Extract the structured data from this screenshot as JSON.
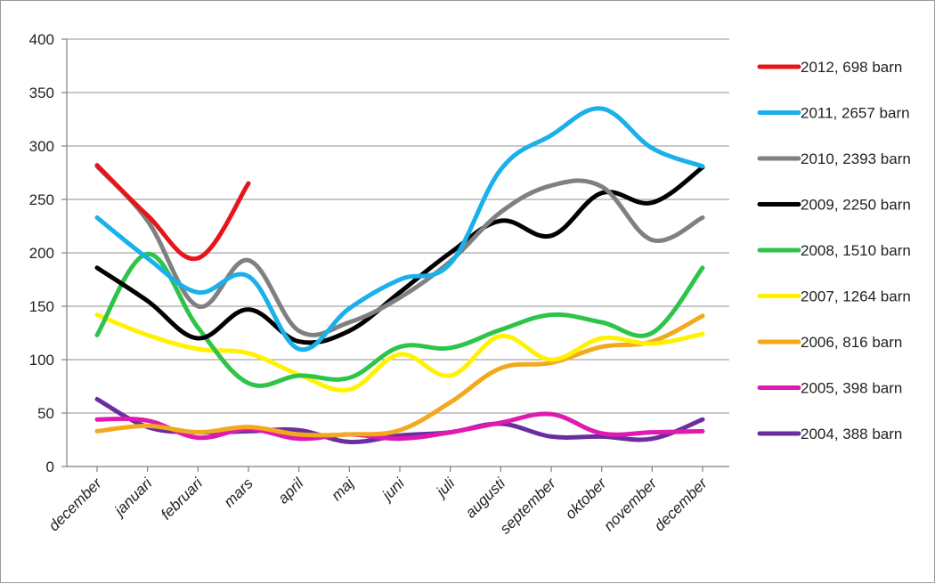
{
  "chart_data": {
    "type": "line",
    "title": "",
    "xlabel": "",
    "ylabel": "",
    "ylim": [
      0,
      400
    ],
    "yticks": [
      0,
      50,
      100,
      150,
      200,
      250,
      300,
      350,
      400
    ],
    "grid": true,
    "legend_position": "right",
    "categories": [
      "december",
      "januari",
      "februari",
      "mars",
      "april",
      "maj",
      "juni",
      "juli",
      "augusti",
      "september",
      "oktober",
      "november",
      "december"
    ],
    "series": [
      {
        "name": "2012, 698 barn",
        "color": "#e8141c",
        "values": [
          282,
          235,
          195,
          265,
          null,
          null,
          null,
          null,
          null,
          null,
          null,
          null,
          null
        ]
      },
      {
        "name": "2011, 2657 barn",
        "color": "#1ab0ea",
        "values": [
          233,
          195,
          163,
          178,
          110,
          148,
          175,
          190,
          278,
          310,
          335,
          298,
          281
        ]
      },
      {
        "name": "2010, 2393 barn",
        "color": "#808080",
        "values": [
          281,
          230,
          150,
          193,
          127,
          135,
          158,
          192,
          238,
          263,
          262,
          212,
          233
        ]
      },
      {
        "name": "2009, 2250 barn",
        "color": "#000000",
        "values": [
          186,
          155,
          120,
          147,
          117,
          127,
          163,
          200,
          230,
          216,
          256,
          247,
          280
        ]
      },
      {
        "name": "2008, 1510 barn",
        "color": "#2ec44a",
        "values": [
          123,
          199,
          130,
          78,
          85,
          83,
          112,
          111,
          128,
          142,
          135,
          125,
          186
        ]
      },
      {
        "name": "2007, 1264 barn",
        "color": "#fff200",
        "values": [
          142,
          123,
          110,
          106,
          86,
          72,
          105,
          85,
          122,
          100,
          120,
          115,
          124
        ]
      },
      {
        "name": "2006, 816 barn",
        "color": "#f2a91e",
        "values": [
          33,
          38,
          32,
          37,
          30,
          30,
          34,
          60,
          92,
          97,
          112,
          117,
          141
        ]
      },
      {
        "name": "2005, 398 barn",
        "color": "#e01ab0",
        "values": [
          44,
          43,
          27,
          35,
          26,
          30,
          26,
          32,
          41,
          49,
          31,
          32,
          33
        ]
      },
      {
        "name": "2004, 388 barn",
        "color": "#6a2ea0",
        "values": [
          63,
          37,
          32,
          33,
          34,
          23,
          29,
          32,
          40,
          28,
          28,
          26,
          44
        ]
      }
    ]
  }
}
